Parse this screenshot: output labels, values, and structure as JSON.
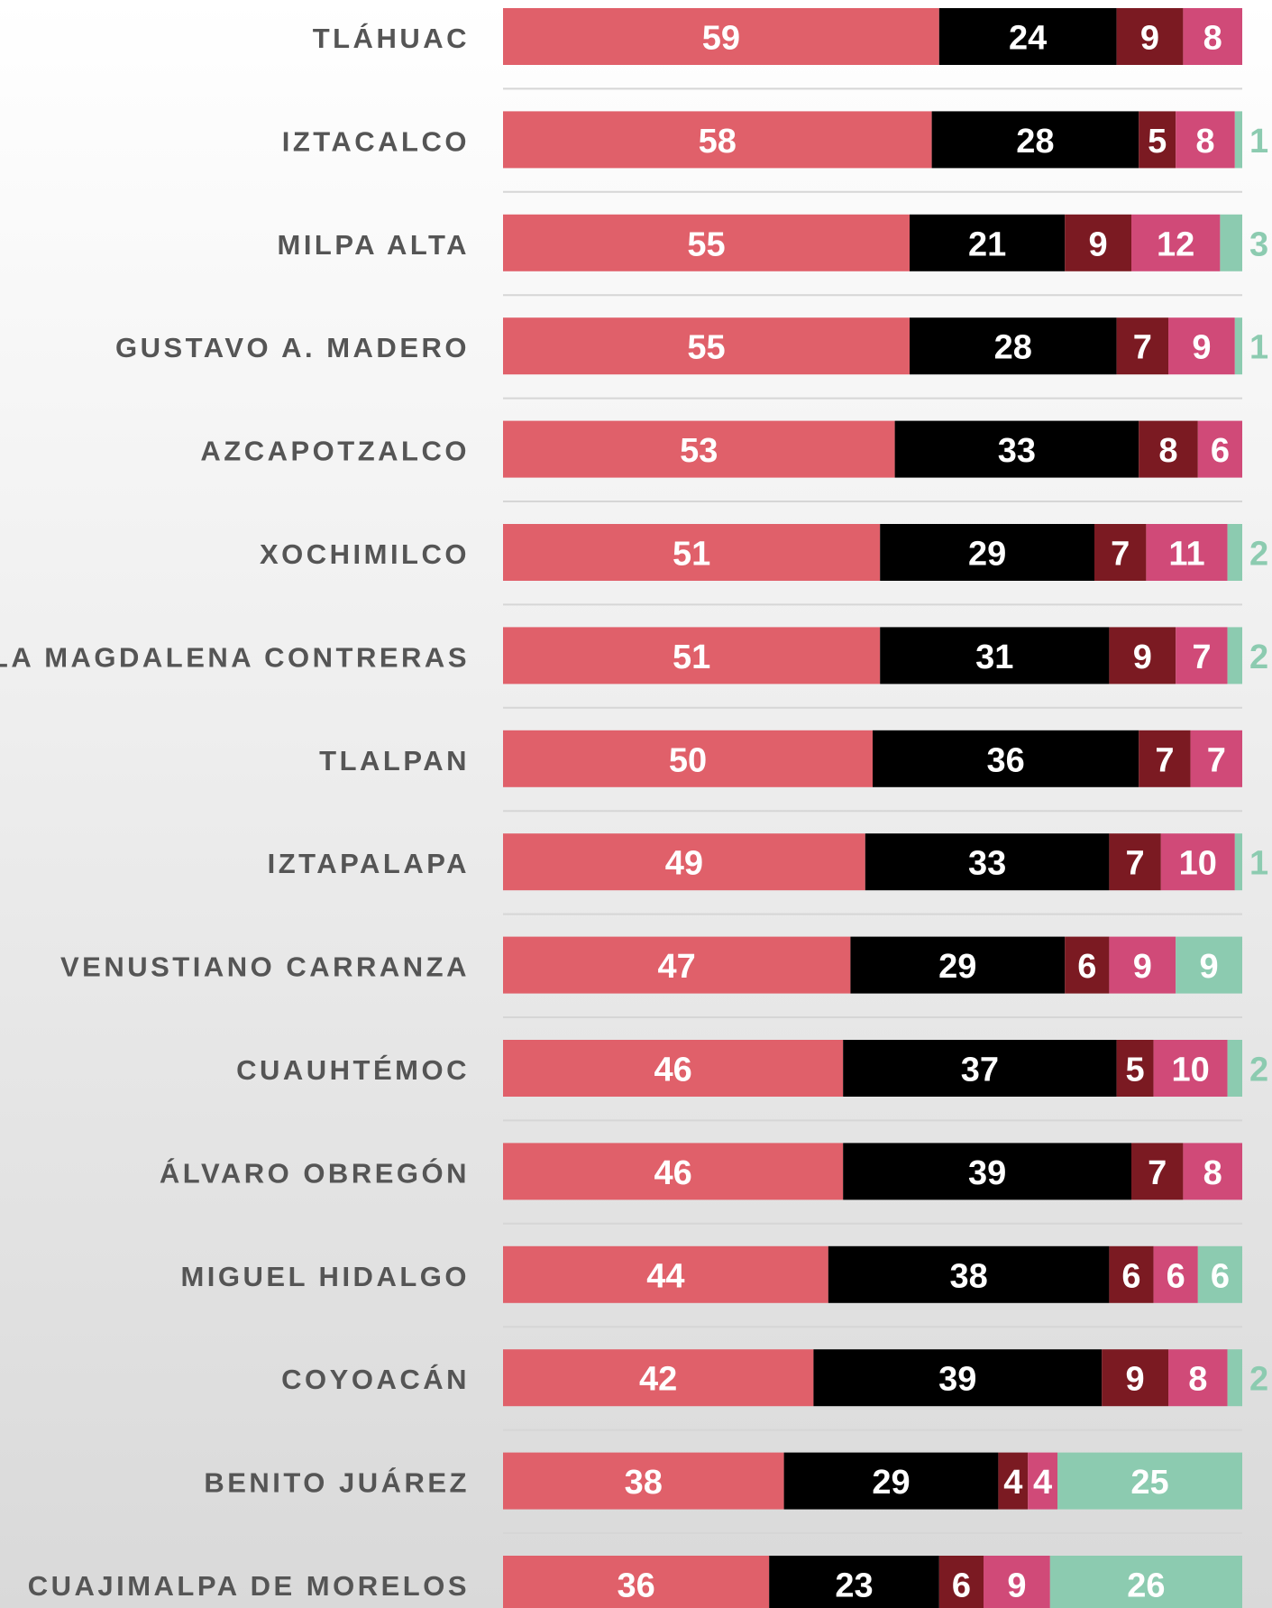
{
  "chart_data": {
    "type": "stacked-bar-horizontal",
    "categories": [
      "TLÁHUAC",
      "IZTACALCO",
      "MILPA ALTA",
      "GUSTAVO A. MADERO",
      "AZCAPOTZALCO",
      "XOCHIMILCO",
      "LA MAGDALENA CONTRERAS",
      "TLALPAN",
      "IZTAPALAPA",
      "VENUSTIANO CARRANZA",
      "CUAUHTÉMOC",
      "ÁLVARO OBREGÓN",
      "MIGUEL HIDALGO",
      "COYOACÁN",
      "BENITO JUÁREZ",
      "CUAJIMALPA DE MORELOS"
    ],
    "xlim": [
      0,
      100
    ],
    "series": [
      {
        "color": "#e0606a",
        "values": [
          59,
          58,
          55,
          55,
          53,
          51,
          51,
          50,
          49,
          47,
          46,
          46,
          44,
          42,
          38,
          36
        ]
      },
      {
        "color": "#000000",
        "values": [
          24,
          28,
          21,
          28,
          33,
          29,
          31,
          36,
          33,
          29,
          37,
          39,
          38,
          39,
          29,
          23
        ]
      },
      {
        "color": "#7b1a22",
        "values": [
          9,
          5,
          9,
          7,
          8,
          7,
          9,
          7,
          7,
          6,
          5,
          7,
          6,
          9,
          4,
          6
        ]
      },
      {
        "color": "#d04a78",
        "values": [
          8,
          8,
          12,
          9,
          6,
          11,
          7,
          7,
          10,
          9,
          10,
          8,
          6,
          8,
          4,
          9
        ]
      },
      {
        "color": "#8ccbb0",
        "values": [
          null,
          1,
          3,
          1,
          null,
          2,
          2,
          null,
          1,
          9,
          2,
          null,
          6,
          2,
          25,
          26
        ]
      }
    ]
  }
}
